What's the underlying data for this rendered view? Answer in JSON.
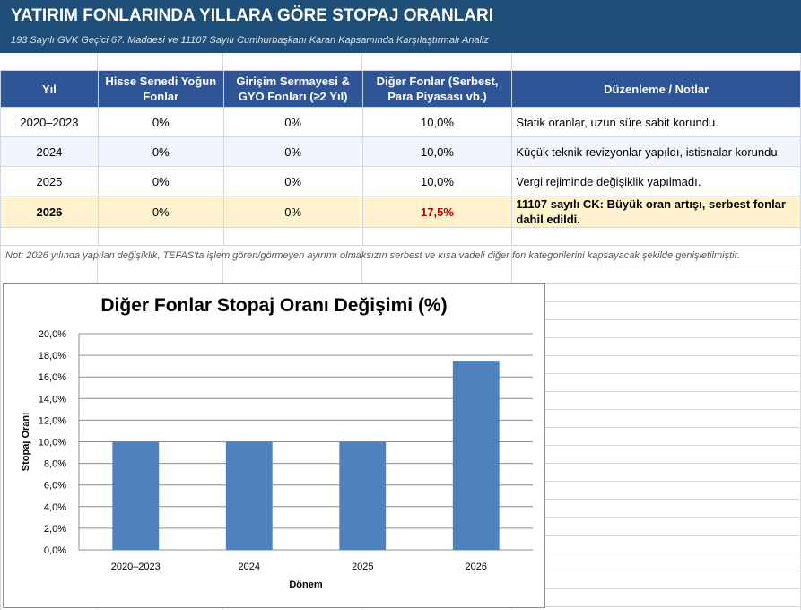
{
  "header": {
    "title": "YATIRIM FONLARINDA YILLARA GÖRE STOPAJ ORANLARI",
    "subtitle": "193 Sayılı GVK Geçici 67. Maddesi ve 11107 Sayılı Cumhurbaşkanı Karan Kapsamında Karşılaştırmalı Analiz"
  },
  "table": {
    "columns": [
      "Yıl",
      "Hisse Senedi Yoğun Fonlar",
      "Girişim Sermayesi & GYO Fonları (≥2 Yıl)",
      "Diğer Fonlar (Serbest, Para Piyasası vb.)",
      "Düzenleme / Notlar"
    ],
    "rows": [
      {
        "yil": "2020–2023",
        "hisse": "0%",
        "girisim": "0%",
        "diger": "10,0%",
        "not": "Statik oranlar, uzun süre sabit korundu."
      },
      {
        "yil": "2024",
        "hisse": "0%",
        "girisim": "0%",
        "diger": "10,0%",
        "not": "Küçük teknik revizyonlar yapıldı, istisnalar korundu."
      },
      {
        "yil": "2025",
        "hisse": "0%",
        "girisim": "0%",
        "diger": "10,0%",
        "not": "Vergi rejiminde değişiklik yapılmadı."
      },
      {
        "yil": "2026",
        "hisse": "0%",
        "girisim": "0%",
        "diger": "17,5%",
        "not": "11107 sayılı CK: Büyük oran artışı, serbest fonlar dahil edildi."
      }
    ]
  },
  "footnote": "Not: 2026 yılında yapılan değişiklik, TEFAS'ta işlem gören/görmeyen ayırımı olmaksızın serbest ve kısa vadeli diğer fon kategorilerini kapsayacak şekilde genişletilmiştir.",
  "colors": {
    "banner": "#1f4e79",
    "header": "#2f5597",
    "highlight_row": "#fff2cc",
    "highlight_value": "#c00000",
    "bar": "#4f81bd"
  },
  "chart_data": {
    "type": "bar",
    "title": "Diğer Fonlar Stopaj Oranı Değişimi (%)",
    "xlabel": "Dönem",
    "ylabel": "Stopaj Oranı",
    "categories": [
      "2020–2023",
      "2024",
      "2025",
      "2026"
    ],
    "values": [
      10.0,
      10.0,
      10.0,
      17.5
    ],
    "ylim": [
      0,
      20
    ],
    "yticks": [
      "0,0%",
      "2,0%",
      "4,0%",
      "6,0%",
      "8,0%",
      "10,0%",
      "12,0%",
      "14,0%",
      "16,0%",
      "18,0%",
      "20,0%"
    ],
    "grid": true,
    "legend": "none"
  }
}
